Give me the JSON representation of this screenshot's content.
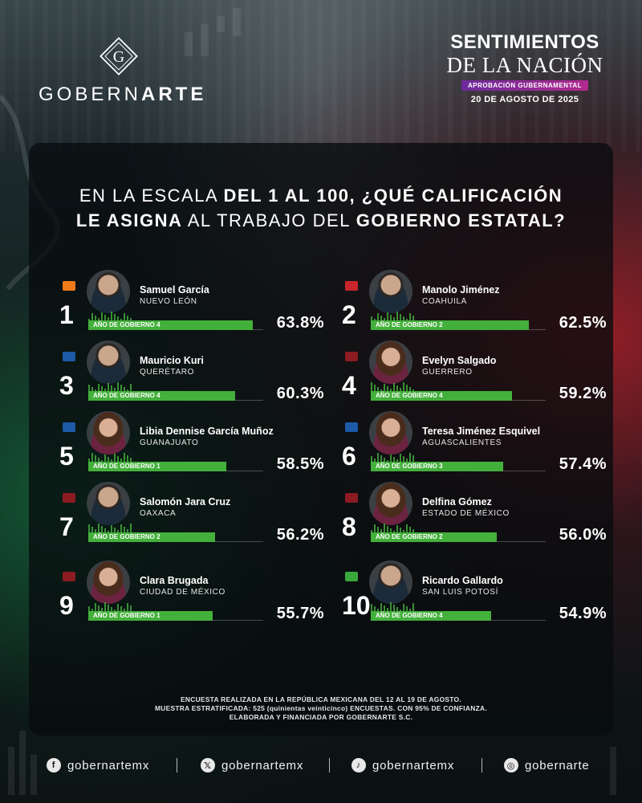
{
  "header": {
    "logo_text_pre": "GOBERN",
    "logo_text_bold": "ARTE",
    "logo_letter": "G",
    "brand_line1": "SENTIMIENTOS",
    "brand_line2": "DE LA NACIÓN",
    "brand_tag": "APROBACIÓN GUBERNAMENTAL",
    "date": "20 DE AGOSTO DE 2025"
  },
  "question": {
    "part1": "EN LA ESCALA ",
    "part2": "DEL 1 AL 100, ¿QUÉ CALIFICACIÓN",
    "part3": "LE ASIGNA",
    "part4": " AL TRABAJO DEL ",
    "part5": "GOBIERNO ESTATAL?"
  },
  "year_label_prefix": "AÑO DE GOBIERNO",
  "colors": {
    "bar_green": "#44b03c",
    "mc_orange": "#f07a1a",
    "pri_red": "#c8262c",
    "pan_blue": "#1d5aa8",
    "morena_red": "#8c1b22",
    "pvem_green": "#3aa83a"
  },
  "entries": [
    {
      "rank": "1",
      "name": "Samuel García",
      "state": "NUEVO LEÓN",
      "year_label": "AÑO DE GOBIERNO 4",
      "year": 4,
      "pct": "63.8%",
      "value": 63.8,
      "party_color": "#f07a1a",
      "avatar": "male"
    },
    {
      "rank": "2",
      "name": "Manolo Jiménez",
      "state": "COAHUILA",
      "year_label": "AÑO DE GOBIERNO 2",
      "year": 2,
      "pct": "62.5%",
      "value": 62.5,
      "party_color": "#c8262c",
      "avatar": "male"
    },
    {
      "rank": "3",
      "name": "Mauricio Kuri",
      "state": "QUERÉTARO",
      "year_label": "AÑO DE GOBIERNO 4",
      "year": 4,
      "pct": "60.3%",
      "value": 60.3,
      "party_color": "#1d5aa8",
      "avatar": "male"
    },
    {
      "rank": "4",
      "name": "Evelyn Salgado",
      "state": "GUERRERO",
      "year_label": "AÑO DE GOBIERNO 4",
      "year": 4,
      "pct": "59.2%",
      "value": 59.2,
      "party_color": "#8c1b22",
      "avatar": "female"
    },
    {
      "rank": "5",
      "name": "Libia Dennise García Muñoz",
      "state": "GUANAJUATO",
      "year_label": "AÑO DE GOBIERNO 1",
      "year": 1,
      "pct": "58.5%",
      "value": 58.5,
      "party_color": "#1d5aa8",
      "avatar": "female"
    },
    {
      "rank": "6",
      "name": "Teresa Jiménez Esquivel",
      "state": "AGUASCALIENTES",
      "year_label": "AÑO DE GOBIERNO 3",
      "year": 3,
      "pct": "57.4%",
      "value": 57.4,
      "party_color": "#1d5aa8",
      "avatar": "female"
    },
    {
      "rank": "7",
      "name": "Salomón Jara Cruz",
      "state": "OAXACA",
      "year_label": "AÑO DE GOBIERNO 2",
      "year": 2,
      "pct": "56.2%",
      "value": 56.2,
      "party_color": "#8c1b22",
      "avatar": "male"
    },
    {
      "rank": "8",
      "name": "Delfina Gómez",
      "state": "ESTADO DE MÉXICO",
      "year_label": "AÑO DE GOBIERNO 2",
      "year": 2,
      "pct": "56.0%",
      "value": 56.0,
      "party_color": "#8c1b22",
      "avatar": "female"
    },
    {
      "rank": "9",
      "name": "Clara Brugada",
      "state": "CIUDAD DE MÉXICO",
      "year_label": "AÑO DE GOBIERNO 1",
      "year": 1,
      "pct": "55.7%",
      "value": 55.7,
      "party_color": "#8c1b22",
      "avatar": "female"
    },
    {
      "rank": "10",
      "name": "Ricardo Gallardo",
      "state": "SAN LUIS POTOSÍ",
      "year_label": "AÑO DE GOBIERNO 4",
      "year": 4,
      "pct": "54.9%",
      "value": 54.9,
      "party_color": "#3aa83a",
      "avatar": "male"
    }
  ],
  "footnote": {
    "line1": "ENCUESTA REALIZADA EN LA REPÚBLICA MEXICANA DEL 12 AL 19 DE AGOSTO.",
    "line2": "MUESTRA ESTRATIFICADA: 525 (quinientas veinticinco) ENCUESTAS. CON 95% DE CONFIANZA.",
    "line3": "ELABORADA Y FINANCIADA POR GOBERNARTE S.C."
  },
  "social": [
    {
      "icon": "facebook-icon",
      "glyph": "f",
      "handle": "gobernartemx"
    },
    {
      "icon": "x-icon",
      "glyph": "𝕏",
      "handle": "gobernartemx"
    },
    {
      "icon": "tiktok-icon",
      "glyph": "♪",
      "handle": "gobernartemx"
    },
    {
      "icon": "instagram-icon",
      "glyph": "◎",
      "handle": "gobernarte"
    }
  ]
}
